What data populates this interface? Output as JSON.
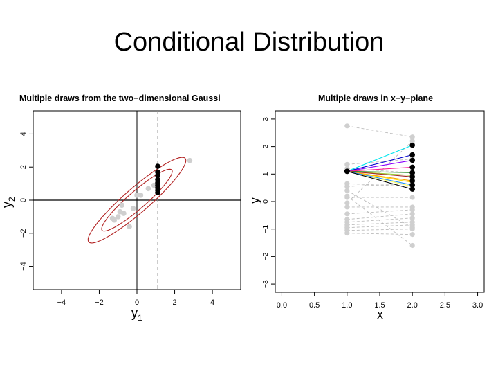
{
  "slide": {
    "title": "Conditional Distribution"
  },
  "colors": {
    "points": "#cfcfcf",
    "conditional_points": "#000000",
    "ellipse": "#b22222",
    "dashed_lines": "#bbbbbb",
    "axis": "#000000"
  },
  "chart_data": [
    {
      "type": "scatter",
      "title": "Multiple draws from the two−dimensional Gaussi",
      "xlabel": "y",
      "xlabel_sub": "1",
      "ylabel": "y",
      "ylabel_sub": "2",
      "xlim": [
        -5.5,
        5.5
      ],
      "ylim": [
        -5.4,
        5.4
      ],
      "xticks": [
        -4,
        -2,
        0,
        2,
        4
      ],
      "yticks": [
        -4,
        -2,
        0,
        2,
        4
      ],
      "tick_labels_x": [
        "−4",
        "−2",
        "0",
        "2",
        "4"
      ],
      "tick_labels_y": [
        "−4",
        "−2",
        "0",
        "2",
        "4"
      ],
      "reference_lines": {
        "x": 0,
        "y": 0
      },
      "conditioning_line_x": 1.1,
      "ellipse": {
        "center": [
          0,
          0
        ],
        "angle_deg": 45,
        "semi_axes": [
          [
            2.6,
            0.5
          ],
          [
            3.6,
            0.7
          ]
        ]
      },
      "series": [
        {
          "points": [
            [
              -1.2,
              -1.2
            ],
            [
              -1.0,
              -1.0
            ],
            [
              -0.9,
              -0.7
            ],
            [
              -0.7,
              -0.8
            ],
            [
              -0.8,
              -0.3
            ],
            [
              -0.4,
              -1.6
            ],
            [
              -0.2,
              -0.5
            ],
            [
              0.0,
              0.3
            ],
            [
              0.2,
              0.3
            ],
            [
              0.6,
              0.7
            ],
            [
              0.9,
              0.9
            ],
            [
              2.8,
              2.4
            ],
            [
              -1.3,
              -1.1
            ]
          ]
        },
        {
          "points": [
            [
              1.1,
              2.05
            ],
            [
              1.1,
              1.7
            ],
            [
              1.1,
              1.5
            ],
            [
              1.1,
              1.25
            ],
            [
              1.1,
              1.05
            ],
            [
              1.1,
              0.9
            ],
            [
              1.1,
              0.75
            ],
            [
              1.1,
              0.6
            ],
            [
              1.1,
              0.45
            ]
          ]
        }
      ]
    },
    {
      "type": "line",
      "title": "Multiple draws in x−y−plane",
      "xlabel": "x",
      "ylabel": "y",
      "xlim": [
        -0.1,
        3.1
      ],
      "ylim": [
        -3.3,
        3.3
      ],
      "xticks": [
        0.0,
        0.5,
        1.0,
        1.5,
        2.0,
        2.5,
        3.0
      ],
      "yticks": [
        -3,
        -2,
        -1,
        0,
        1,
        2,
        3
      ],
      "tick_labels_x": [
        "0.0",
        "0.5",
        "1.0",
        "1.5",
        "2.0",
        "2.5",
        "3.0"
      ],
      "tick_labels_y": [
        "−3",
        "−2",
        "−1",
        "0",
        "1",
        "2",
        "3"
      ],
      "grey_pairs": [
        [
          2.75,
          2.35
        ],
        [
          1.35,
          1.55
        ],
        [
          1.2,
          1.05
        ],
        [
          0.65,
          0.55
        ],
        [
          0.55,
          0.65
        ],
        [
          0.15,
          0.15
        ],
        [
          -0.2,
          -0.2
        ],
        [
          -0.45,
          -0.3
        ],
        [
          -0.65,
          -0.45
        ],
        [
          -0.75,
          -0.6
        ],
        [
          -0.85,
          -0.75
        ],
        [
          -0.95,
          -0.85
        ],
        [
          -1.05,
          -1.0
        ],
        [
          -1.15,
          -1.2
        ],
        [
          0.2,
          -1.6
        ],
        [
          -0.05,
          2.2
        ],
        [
          0.4,
          -0.95
        ]
      ],
      "conditional_start": [
        1.0,
        1.1
      ],
      "conditional_end_x": 2.0,
      "conditional_ends": [
        2.05,
        1.7,
        1.5,
        1.25,
        1.05,
        0.9,
        0.75,
        0.6,
        0.45
      ],
      "conditional_line_colors": [
        "#00e5ee",
        "#0000cd",
        "#8b00ff",
        "#ff1493",
        "#228b22",
        "#a52a2a",
        "#ffa500",
        "#1e90ff",
        "#000000"
      ],
      "extra_colored_ends": [
        0.95,
        0.7,
        0.55
      ],
      "extra_colored_colors": [
        "#9acd32",
        "#ffd700",
        "#ffff66"
      ]
    }
  ]
}
